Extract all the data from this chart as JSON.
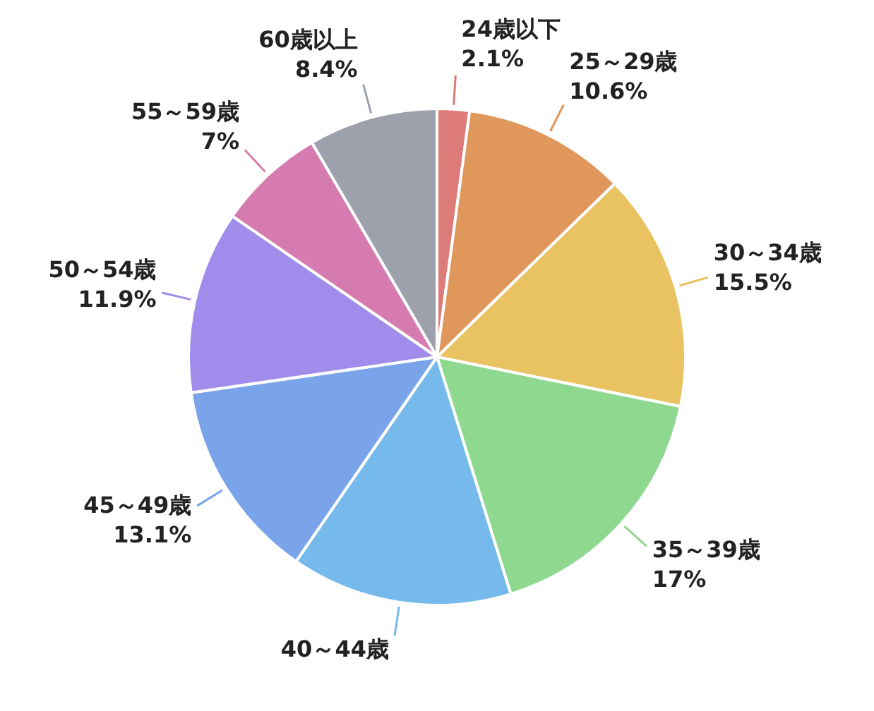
{
  "chart_data": {
    "type": "pie",
    "categories": [
      "24歳以下",
      "25～29歳",
      "30～34歳",
      "35～39歳",
      "40～44歳",
      "45～49歳",
      "50～54歳",
      "55～59歳",
      "60歳以上"
    ],
    "values": [
      2.1,
      10.6,
      15.5,
      17,
      14.4,
      13.1,
      11.9,
      7,
      8.4
    ],
    "colors": [
      "#dc7b78",
      "#e0975c",
      "#e9c262",
      "#8fd890",
      "#76baec",
      "#7aa4ea",
      "#9f8ceb",
      "#d67bb0",
      "#9ca1ab"
    ],
    "value_labels": [
      "2.1%",
      "10.6%",
      "15.5%",
      "17%",
      null,
      "13.1%",
      "11.9%",
      "7%",
      "8.4%"
    ]
  }
}
